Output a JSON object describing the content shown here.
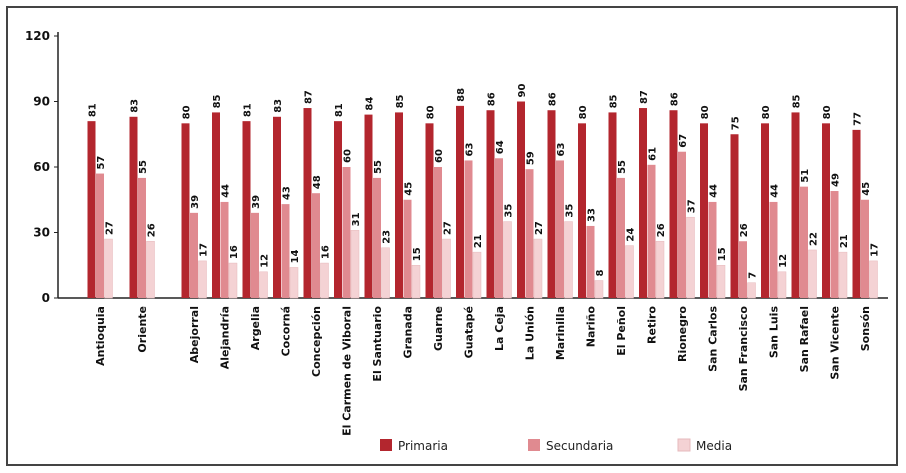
{
  "chart_data": {
    "type": "bar",
    "ylim": [
      0,
      120
    ],
    "yticks": [
      0,
      30,
      60,
      90,
      120
    ],
    "grid": false,
    "legend_position": "bottom",
    "categories": [
      "Antioquia",
      "Oriente",
      "Abejorral",
      "Alejandría",
      "Argelia",
      "Cocorná",
      "Concepción",
      "El Carmen de Viboral",
      "El Santuario",
      "Granada",
      "Guarne",
      "Guatapé",
      "La Ceja",
      "La Unión",
      "Marinilla",
      "Nariño",
      "El Peñol",
      "Retiro",
      "Rionegro",
      "San Carlos",
      "San Francisco",
      "San Luis",
      "San Rafael",
      "San Vicente",
      "Sonsón"
    ],
    "series": [
      {
        "name": "Primaria",
        "color": "#b3262e",
        "values": [
          81,
          83,
          80,
          85,
          81,
          83,
          87,
          81,
          84,
          85,
          80,
          88,
          86,
          90,
          86,
          80,
          85,
          87,
          86,
          80,
          75,
          80,
          85,
          80,
          77
        ]
      },
      {
        "name": "Secundaria",
        "color": "#e08a90",
        "values": [
          57,
          55,
          39,
          44,
          39,
          43,
          48,
          60,
          55,
          45,
          60,
          63,
          64,
          59,
          63,
          33,
          55,
          61,
          67,
          44,
          26,
          44,
          51,
          49,
          45
        ]
      },
      {
        "name": "Media",
        "color": "#f4d2d4",
        "values": [
          27,
          26,
          17,
          16,
          12,
          14,
          16,
          31,
          23,
          15,
          27,
          21,
          35,
          27,
          35,
          8,
          24,
          26,
          37,
          15,
          7,
          12,
          22,
          21,
          17
        ]
      }
    ]
  }
}
